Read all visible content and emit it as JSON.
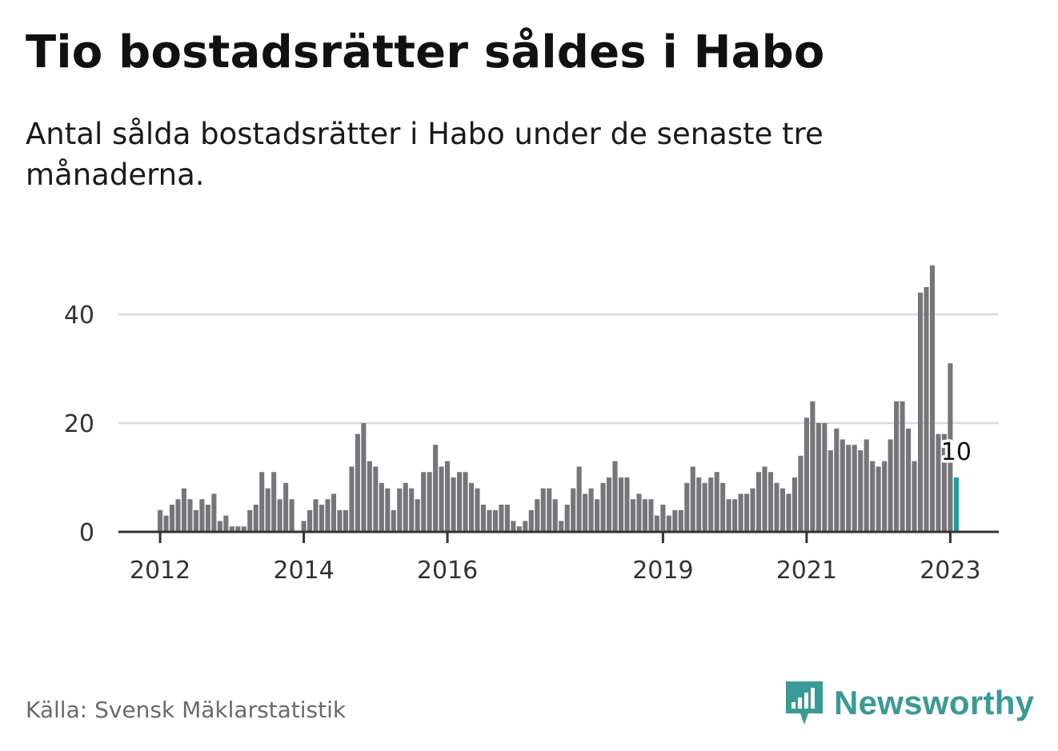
{
  "header": {
    "title": "Tio bostadsrätter såldes i Habo",
    "subtitle": "Antal sålda bostadsrätter i Habo under de senaste tre månaderna."
  },
  "footer": {
    "source": "Källa: Svensk Mäklarstatistik",
    "brand": "Newsworthy"
  },
  "colors": {
    "bar": "#76757a",
    "highlight": "#1a9e9a",
    "grid": "#d9d9d9",
    "axis": "#333333",
    "brand": "#3a9a95"
  },
  "icons": {
    "logo": "newsworthy-logo-icon"
  },
  "chart_data": {
    "type": "bar",
    "title": "Tio bostadsrätter såldes i Habo",
    "xlabel": "",
    "ylabel": "",
    "ylim": [
      0,
      50
    ],
    "yticks": [
      0,
      20,
      40
    ],
    "grid": true,
    "start": "2012-01",
    "xtick_labels": [
      {
        "label": "2012",
        "index": 0
      },
      {
        "label": "2014",
        "index": 24
      },
      {
        "label": "2016",
        "index": 48
      },
      {
        "label": "2019",
        "index": 84
      },
      {
        "label": "2021",
        "index": 108
      },
      {
        "label": "2023",
        "index": 132
      }
    ],
    "values": [
      4,
      3,
      5,
      6,
      8,
      6,
      4,
      6,
      5,
      7,
      2,
      3,
      1,
      1,
      1,
      4,
      5,
      11,
      8,
      11,
      6,
      9,
      6,
      0,
      2,
      4,
      6,
      5,
      6,
      7,
      4,
      4,
      12,
      18,
      20,
      13,
      12,
      9,
      8,
      4,
      8,
      9,
      8,
      6,
      11,
      11,
      16,
      12,
      13,
      10,
      11,
      11,
      9,
      8,
      5,
      4,
      4,
      5,
      5,
      2,
      1,
      2,
      4,
      6,
      8,
      8,
      6,
      2,
      5,
      8,
      12,
      7,
      8,
      6,
      9,
      10,
      13,
      10,
      10,
      6,
      7,
      6,
      6,
      3,
      5,
      3,
      4,
      4,
      9,
      12,
      10,
      9,
      10,
      11,
      9,
      6,
      6,
      7,
      7,
      8,
      11,
      12,
      11,
      9,
      8,
      7,
      10,
      14,
      21,
      24,
      20,
      20,
      15,
      19,
      17,
      16,
      16,
      15,
      17,
      13,
      12,
      13,
      17,
      24,
      24,
      19,
      13,
      44,
      45,
      49,
      18,
      18,
      31,
      10
    ],
    "highlight_index": 133,
    "annotation": {
      "index": 133,
      "text": "10"
    }
  }
}
